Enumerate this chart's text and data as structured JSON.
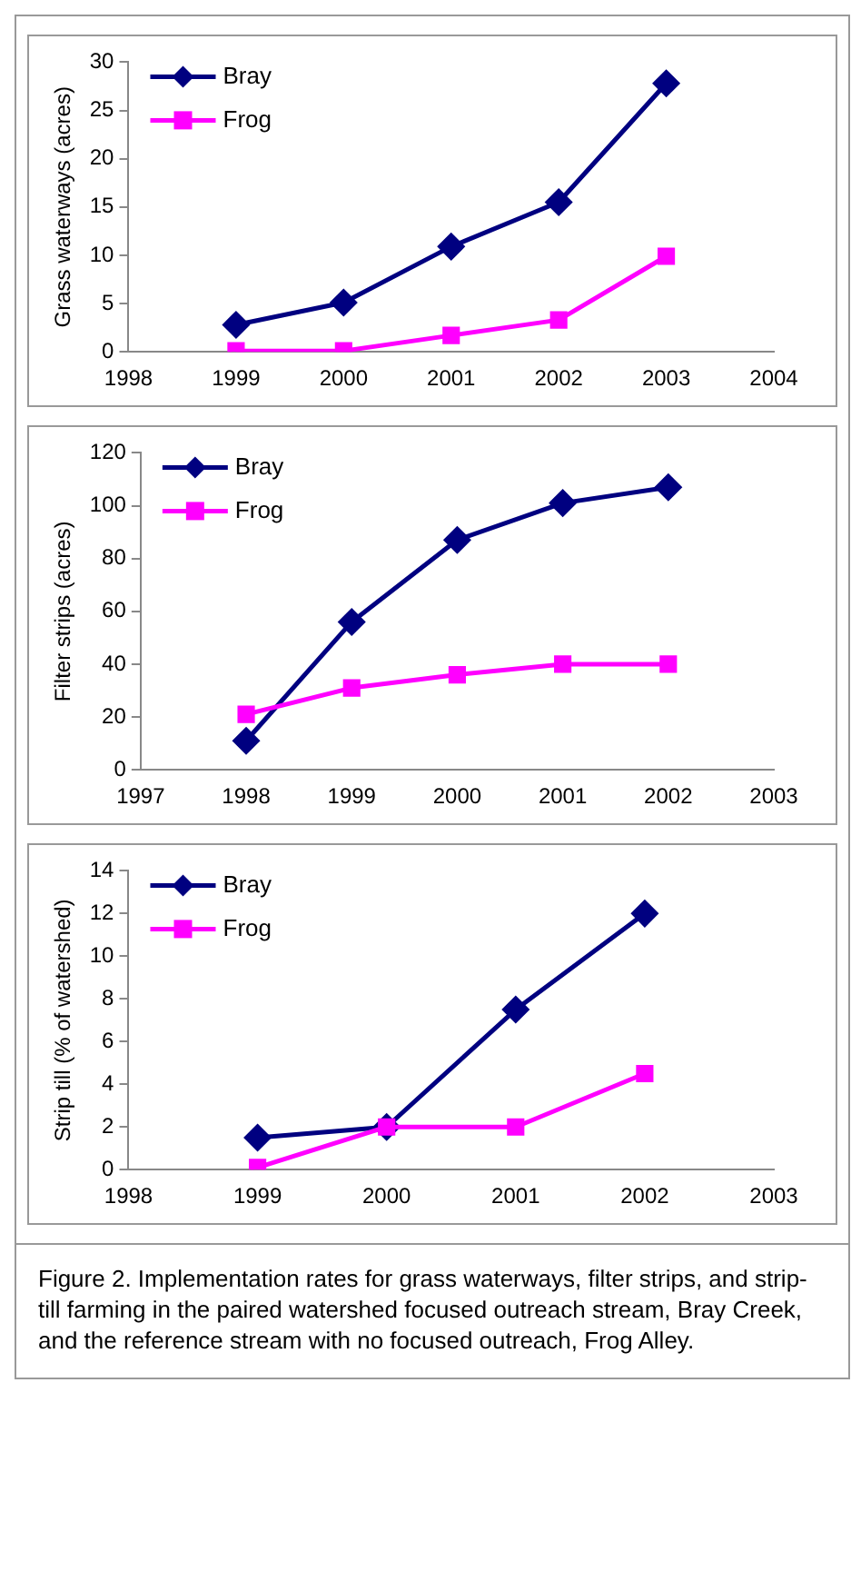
{
  "chart_data": [
    {
      "type": "line",
      "ylabel": "Grass waterways (acres)",
      "x": [
        1999,
        2000,
        2001,
        2002,
        2003
      ],
      "xlim": [
        1998,
        2004
      ],
      "xticks": [
        1998,
        1999,
        2000,
        2001,
        2002,
        2003,
        2004
      ],
      "ylim": [
        0,
        30
      ],
      "yticks": [
        0,
        5,
        10,
        15,
        20,
        25,
        30
      ],
      "legend": "top left",
      "grid": false,
      "series": [
        {
          "name": "Bray",
          "color": "#000080",
          "marker": "diamond",
          "values": [
            2.8,
            5.1,
            10.9,
            15.5,
            27.8
          ]
        },
        {
          "name": "Frog",
          "color": "#ff00ff",
          "marker": "square",
          "values": [
            0.1,
            0.1,
            1.7,
            3.3,
            9.9
          ]
        }
      ]
    },
    {
      "type": "line",
      "ylabel": "Filter strips (acres)",
      "x": [
        1998,
        1999,
        2000,
        2001,
        2002
      ],
      "xlim": [
        1997,
        2003
      ],
      "xticks": [
        1997,
        1998,
        1999,
        2000,
        2001,
        2002,
        2003
      ],
      "ylim": [
        0,
        120
      ],
      "yticks": [
        0,
        20,
        40,
        60,
        80,
        100,
        120
      ],
      "legend": "top left",
      "grid": false,
      "series": [
        {
          "name": "Bray",
          "color": "#000080",
          "marker": "diamond",
          "values": [
            11,
            56,
            87,
            101,
            107
          ]
        },
        {
          "name": "Frog",
          "color": "#ff00ff",
          "marker": "square",
          "values": [
            21,
            31,
            36,
            40,
            40
          ]
        }
      ]
    },
    {
      "type": "line",
      "ylabel": "Strip till (% of watershed)",
      "x": [
        1999,
        2000,
        2001,
        2002
      ],
      "xlim": [
        1998,
        2003
      ],
      "xticks": [
        1998,
        1999,
        2000,
        2001,
        2002,
        2003
      ],
      "ylim": [
        0,
        14
      ],
      "yticks": [
        0,
        2,
        4,
        6,
        8,
        10,
        12,
        14
      ],
      "legend": "top left",
      "grid": false,
      "series": [
        {
          "name": "Bray",
          "color": "#000080",
          "marker": "diamond",
          "values": [
            1.5,
            2,
            7.5,
            12
          ]
        },
        {
          "name": "Frog",
          "color": "#ff00ff",
          "marker": "square",
          "values": [
            0.1,
            2,
            2,
            4.5
          ]
        }
      ],
      "annotations": [
        "Figure 2. Implementation rates for grass waterways, filter strips, and strip-till farming in the paired watershed focused outreach stream, Bray Creek, and the reference stream with no focused outreach, Frog Alley."
      ]
    }
  ]
}
